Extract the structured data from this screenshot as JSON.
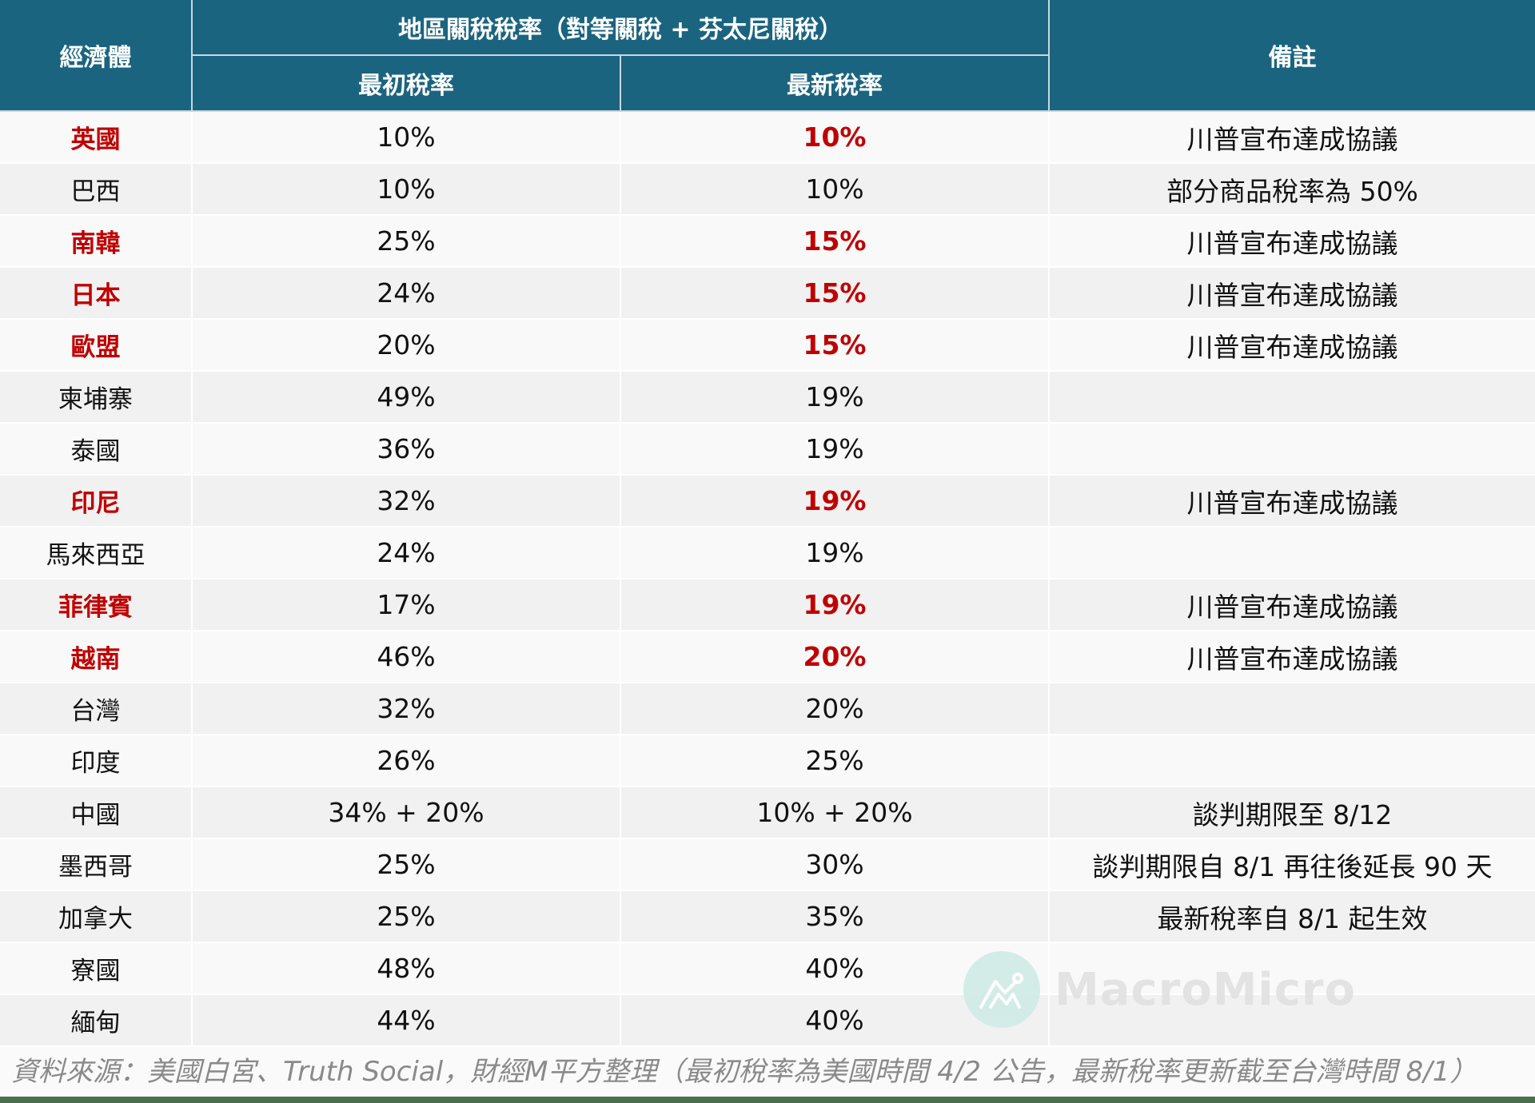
{
  "header": {
    "economy": "經濟體",
    "group_title": "地區關稅稅率（對等關稅 + 芬太尼關稅）",
    "initial_rate": "最初稅率",
    "latest_rate": "最新稅率",
    "notes": "備註"
  },
  "colors": {
    "header_bg": "#1b6480",
    "highlight_red": "#c00000",
    "row_odd": "#f9f9f9",
    "row_even": "#f1f1f1",
    "bottom_bar": "#4a7050"
  },
  "rows": [
    {
      "economy": "英國",
      "initial": "10%",
      "latest": "10%",
      "note": "川普宣布達成協議",
      "highlight": true
    },
    {
      "economy": "巴西",
      "initial": "10%",
      "latest": "10%",
      "note": "部分商品稅率為 50%",
      "highlight": false
    },
    {
      "economy": "南韓",
      "initial": "25%",
      "latest": "15%",
      "note": "川普宣布達成協議",
      "highlight": true
    },
    {
      "economy": "日本",
      "initial": "24%",
      "latest": "15%",
      "note": "川普宣布達成協議",
      "highlight": true
    },
    {
      "economy": "歐盟",
      "initial": "20%",
      "latest": "15%",
      "note": "川普宣布達成協議",
      "highlight": true
    },
    {
      "economy": "柬埔寨",
      "initial": "49%",
      "latest": "19%",
      "note": "",
      "highlight": false
    },
    {
      "economy": "泰國",
      "initial": "36%",
      "latest": "19%",
      "note": "",
      "highlight": false
    },
    {
      "economy": "印尼",
      "initial": "32%",
      "latest": "19%",
      "note": "川普宣布達成協議",
      "highlight": true
    },
    {
      "economy": "馬來西亞",
      "initial": "24%",
      "latest": "19%",
      "note": "",
      "highlight": false
    },
    {
      "economy": "菲律賓",
      "initial": "17%",
      "latest": "19%",
      "note": "川普宣布達成協議",
      "highlight": true
    },
    {
      "economy": "越南",
      "initial": "46%",
      "latest": "20%",
      "note": "川普宣布達成協議",
      "highlight": true
    },
    {
      "economy": "台灣",
      "initial": "32%",
      "latest": "20%",
      "note": "",
      "highlight": false
    },
    {
      "economy": "印度",
      "initial": "26%",
      "latest": "25%",
      "note": "",
      "highlight": false
    },
    {
      "economy": "中國",
      "initial": "34% + 20%",
      "latest": "10% + 20%",
      "note": "談判期限至 8/12",
      "highlight": false
    },
    {
      "economy": "墨西哥",
      "initial": "25%",
      "latest": "30%",
      "note": "談判期限自 8/1 再往後延長 90 天",
      "highlight": false
    },
    {
      "economy": "加拿大",
      "initial": "25%",
      "latest": "35%",
      "note": "最新稅率自 8/1 起生效",
      "highlight": false
    },
    {
      "economy": "寮國",
      "initial": "48%",
      "latest": "40%",
      "note": "",
      "highlight": false
    },
    {
      "economy": "緬甸",
      "initial": "44%",
      "latest": "40%",
      "note": "",
      "highlight": false
    }
  ],
  "footer": {
    "source": "資料來源：美國白宮、Truth Social，財經M平方整理（最初稅率為美國時間 4/2 公告，最新稅率更新截至台灣時間 8/1）"
  },
  "watermark": {
    "icon": "macromicro-logo-icon",
    "text": "MacroMicro"
  }
}
